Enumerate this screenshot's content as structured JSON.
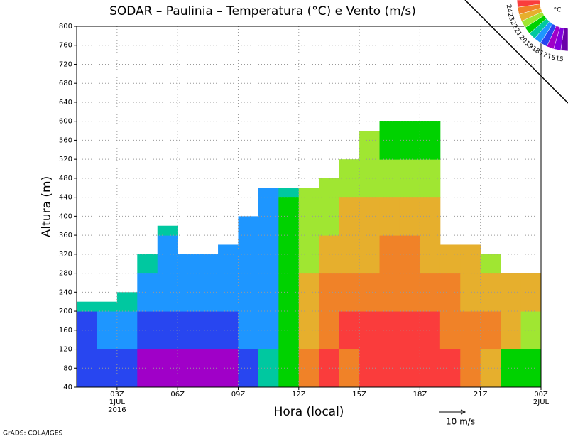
{
  "chart_data": {
    "type": "contour",
    "title": "SODAR – Paulinia – Temperatura (°C) e Vento (m/s)",
    "xlabel": "Hora (local)",
    "ylabel": "Altura (m)",
    "credit": "GrADS: COLA/IGES",
    "wind_reference": "10 m/s",
    "xlim": [
      1,
      24
    ],
    "ylim": [
      40,
      800
    ],
    "xticks": [
      {
        "value": 3,
        "label": "03Z"
      },
      {
        "value": 6,
        "label": "06Z"
      },
      {
        "value": 9,
        "label": "09Z"
      },
      {
        "value": 12,
        "label": "12Z"
      },
      {
        "value": 15,
        "label": "15Z"
      },
      {
        "value": 18,
        "label": "18Z"
      },
      {
        "value": 21,
        "label": "21Z"
      },
      {
        "value": 24,
        "label": "00Z"
      }
    ],
    "date_labels": [
      {
        "value": 3,
        "lines": [
          "1JUL",
          "2016"
        ]
      },
      {
        "value": 24,
        "lines": [
          "2JUL"
        ]
      }
    ],
    "yticks": [
      40,
      80,
      120,
      160,
      200,
      240,
      280,
      320,
      360,
      400,
      440,
      480,
      520,
      560,
      600,
      640,
      680,
      720,
      760,
      800
    ],
    "grid": true,
    "legend": {
      "unit": "°C",
      "levels": [
        15,
        16,
        17,
        18,
        19,
        20,
        21,
        22,
        23,
        24
      ],
      "colors": [
        "#6a00a8",
        "#8200dc",
        "#a000c8",
        "#2846f0",
        "#1e96ff",
        "#00c8a0",
        "#00d200",
        "#a0e632",
        "#e6af2d",
        "#f08228",
        "#fa3c3c"
      ]
    },
    "field": {
      "x_bins": [
        1,
        2,
        3,
        4,
        5,
        6,
        7,
        8,
        9,
        10,
        11,
        12,
        13,
        14,
        15,
        16,
        17,
        18,
        19,
        20,
        21,
        22,
        23,
        24
      ],
      "y_bins": [
        40,
        120,
        200,
        280,
        360,
        440,
        520,
        600,
        680
      ],
      "tops": [
        220,
        220,
        240,
        320,
        380,
        320,
        320,
        340,
        400,
        460,
        460,
        460,
        480,
        540,
        580,
        620,
        620,
        620,
        340,
        340,
        320,
        280,
        280
      ],
      "values": [
        [
          17.5,
          17.5,
          19.5
        ],
        [
          17.5,
          18.5,
          19.5
        ],
        [
          17.5,
          18.5,
          19.5
        ],
        [
          16.5,
          17.5,
          18.5,
          19.5
        ],
        [
          16.5,
          17.5,
          18.5,
          18.5,
          19.5
        ],
        [
          16.5,
          17.5,
          18.5,
          18.5
        ],
        [
          16.5,
          17.5,
          18.5,
          18.5
        ],
        [
          16.5,
          17.5,
          18.5,
          18.5
        ],
        [
          17.5,
          18.5,
          18.5,
          18.5,
          18.5
        ],
        [
          19.5,
          18.5,
          18.5,
          18.5,
          18.5,
          18.5
        ],
        [
          20.5,
          20.5,
          20.5,
          20.5,
          20.5,
          19.5
        ],
        [
          23.5,
          22.5,
          22.5,
          21.5,
          21.5,
          21.5
        ],
        [
          24.5,
          23.5,
          23.5,
          22.5,
          21.5,
          21.5
        ],
        [
          23.5,
          24.5,
          23.5,
          22.5,
          22.5,
          21.5
        ],
        [
          24.5,
          24.5,
          23.5,
          22.5,
          22.5,
          21.5,
          21.5
        ],
        [
          24.5,
          24.5,
          23.5,
          23.5,
          22.5,
          21.5,
          20.5
        ],
        [
          24.5,
          24.5,
          23.5,
          23.5,
          22.5,
          21.5,
          20.5
        ],
        [
          24.5,
          24.5,
          23.5,
          22.5,
          22.5,
          21.5,
          20.5
        ],
        [
          24.5,
          23.5,
          23.5,
          22.5
        ],
        [
          23.5,
          23.5,
          22.5,
          22.5
        ],
        [
          22.5,
          23.5,
          22.5,
          21.5
        ],
        [
          20.5,
          22.5,
          22.5,
          21.5
        ],
        [
          20.5,
          21.5,
          22.5,
          21.5
        ]
      ]
    }
  }
}
